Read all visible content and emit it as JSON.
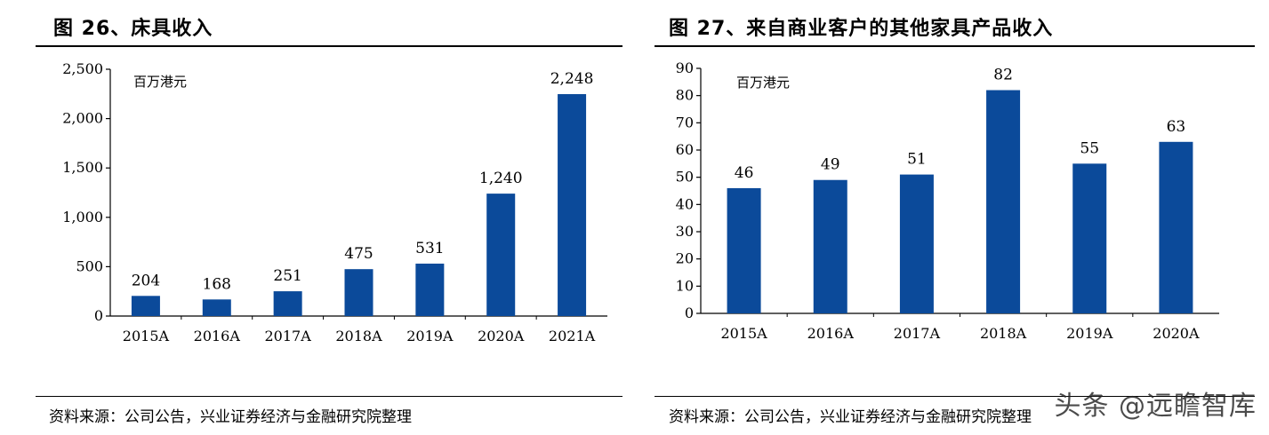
{
  "colors": {
    "bar": "#0b4a9a",
    "axis": "#000000",
    "text": "#000000"
  },
  "figures": [
    {
      "title": "图 26、床具收入",
      "source": "资料来源：公司公告，兴业证券经济与金融研究院整理",
      "chart_data": {
        "type": "bar",
        "unit_label": "百万港元",
        "categories": [
          "2015A",
          "2016A",
          "2017A",
          "2018A",
          "2019A",
          "2020A",
          "2021A"
        ],
        "values": [
          204,
          168,
          251,
          475,
          531,
          1240,
          2248
        ],
        "value_labels": [
          "204",
          "168",
          "251",
          "475",
          "531",
          "1,240",
          "2,248"
        ],
        "yticks": [
          0,
          500,
          1000,
          1500,
          2000,
          2500
        ],
        "ytick_labels": [
          "0",
          "500",
          "1,000",
          "1,500",
          "2,000",
          "2,500"
        ],
        "ylim": [
          0,
          2500
        ],
        "grid": false,
        "legend": "none"
      }
    },
    {
      "title": "图 27、来自商业客户的其他家具产品收入",
      "source": "资料来源：公司公告，兴业证券经济与金融研究院整理",
      "chart_data": {
        "type": "bar",
        "unit_label": "百万港元",
        "categories": [
          "2015A",
          "2016A",
          "2017A",
          "2018A",
          "2019A",
          "2020A"
        ],
        "values": [
          46,
          49,
          51,
          82,
          55,
          63
        ],
        "value_labels": [
          "46",
          "49",
          "51",
          "82",
          "55",
          "63"
        ],
        "yticks": [
          0,
          10,
          20,
          30,
          40,
          50,
          60,
          70,
          80,
          90
        ],
        "ytick_labels": [
          "0",
          "10",
          "20",
          "30",
          "40",
          "50",
          "60",
          "70",
          "80",
          "90"
        ],
        "ylim": [
          0,
          90
        ],
        "grid": false,
        "legend": "none"
      }
    }
  ],
  "watermark": "头条 @远瞻智库"
}
